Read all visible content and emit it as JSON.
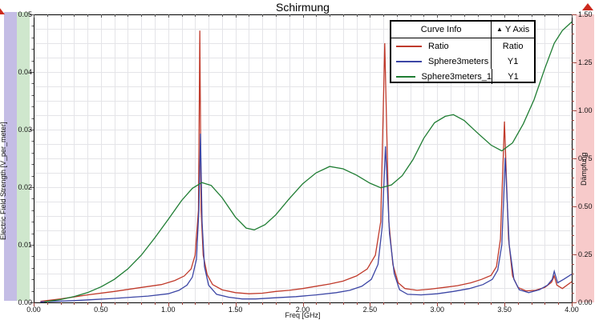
{
  "window": {
    "title": "Schirmung"
  },
  "chart_data": {
    "type": "line",
    "title": "Schirmung",
    "xlabel": "Freq [GHz]",
    "ylabel_left": "Electric Field Strength [V_per_meter]",
    "ylabel_right": "Dämpfung",
    "xlim": [
      0.0,
      4.0
    ],
    "ylim_left": [
      0.0,
      0.05
    ],
    "ylim_right": [
      0.0,
      1.5
    ],
    "grid": true,
    "x_tick_labels": [
      "0.00",
      "0.50",
      "1.00",
      "1.50",
      "2.00",
      "2.50",
      "3.00",
      "3.50",
      "4.00"
    ],
    "y_tick_labels_left": [
      "0.00",
      "0.01",
      "0.02",
      "0.03",
      "0.04",
      "0.05"
    ],
    "y_tick_labels_right": [
      "0.00",
      "0.25",
      "0.50",
      "0.75",
      "1.00",
      "1.25",
      "1.50"
    ],
    "legend": {
      "position": "top-right",
      "header_curve": "Curve Info",
      "header_axis": "Y Axis",
      "sort_icon": "▲",
      "rows": [
        {
          "name": "Ratio",
          "axis": "Ratio",
          "color": "#c03a2b"
        },
        {
          "name": "Sphere3meters",
          "axis": "Y1",
          "color": "#3c46a5"
        },
        {
          "name": "Sphere3meters_1",
          "axis": "Y1",
          "color": "#1f7d33"
        }
      ]
    },
    "series": [
      {
        "name": "Ratio",
        "color": "#c03a2b",
        "y_axis": "Ratio",
        "units_note": "values read against left axis scale",
        "points": [
          [
            0.05,
            0.0002
          ],
          [
            0.2,
            0.0006
          ],
          [
            0.4,
            0.0013
          ],
          [
            0.6,
            0.0019
          ],
          [
            0.8,
            0.0026
          ],
          [
            0.95,
            0.0031
          ],
          [
            1.05,
            0.0038
          ],
          [
            1.12,
            0.0046
          ],
          [
            1.17,
            0.0058
          ],
          [
            1.2,
            0.0082
          ],
          [
            1.225,
            0.016
          ],
          [
            1.235,
            0.0472
          ],
          [
            1.245,
            0.016
          ],
          [
            1.26,
            0.0082
          ],
          [
            1.29,
            0.0048
          ],
          [
            1.33,
            0.0031
          ],
          [
            1.4,
            0.0022
          ],
          [
            1.5,
            0.0017
          ],
          [
            1.6,
            0.0015
          ],
          [
            1.7,
            0.0016
          ],
          [
            1.8,
            0.0019
          ],
          [
            1.9,
            0.0021
          ],
          [
            2.0,
            0.0024
          ],
          [
            2.1,
            0.0028
          ],
          [
            2.2,
            0.0032
          ],
          [
            2.3,
            0.0037
          ],
          [
            2.4,
            0.0046
          ],
          [
            2.48,
            0.0058
          ],
          [
            2.54,
            0.0082
          ],
          [
            2.58,
            0.014
          ],
          [
            2.61,
            0.045
          ],
          [
            2.64,
            0.014
          ],
          [
            2.67,
            0.0066
          ],
          [
            2.71,
            0.0034
          ],
          [
            2.76,
            0.0024
          ],
          [
            2.85,
            0.0021
          ],
          [
            2.95,
            0.0023
          ],
          [
            3.05,
            0.0026
          ],
          [
            3.15,
            0.0029
          ],
          [
            3.25,
            0.0034
          ],
          [
            3.33,
            0.004
          ],
          [
            3.4,
            0.0047
          ],
          [
            3.44,
            0.0062
          ],
          [
            3.47,
            0.011
          ],
          [
            3.5,
            0.0314
          ],
          [
            3.53,
            0.011
          ],
          [
            3.56,
            0.0046
          ],
          [
            3.6,
            0.0026
          ],
          [
            3.66,
            0.002
          ],
          [
            3.73,
            0.0021
          ],
          [
            3.8,
            0.0026
          ],
          [
            3.85,
            0.0035
          ],
          [
            3.87,
            0.0046
          ],
          [
            3.89,
            0.003
          ],
          [
            3.93,
            0.0024
          ],
          [
            4.0,
            0.0036
          ]
        ]
      },
      {
        "name": "Sphere3meters",
        "color": "#3c46a5",
        "y_axis": "Y1",
        "points": [
          [
            0.05,
            0.0001
          ],
          [
            0.3,
            0.0003
          ],
          [
            0.6,
            0.0007
          ],
          [
            0.85,
            0.0011
          ],
          [
            1.0,
            0.0015
          ],
          [
            1.08,
            0.0021
          ],
          [
            1.14,
            0.003
          ],
          [
            1.18,
            0.0044
          ],
          [
            1.21,
            0.0075
          ],
          [
            1.228,
            0.016
          ],
          [
            1.24,
            0.0293
          ],
          [
            1.252,
            0.014
          ],
          [
            1.27,
            0.0062
          ],
          [
            1.3,
            0.003
          ],
          [
            1.36,
            0.0014
          ],
          [
            1.45,
            0.0009
          ],
          [
            1.55,
            0.0006
          ],
          [
            1.65,
            0.0006
          ],
          [
            1.8,
            0.0008
          ],
          [
            1.95,
            0.001
          ],
          [
            2.1,
            0.0013
          ],
          [
            2.25,
            0.0017
          ],
          [
            2.35,
            0.0021
          ],
          [
            2.44,
            0.0028
          ],
          [
            2.51,
            0.004
          ],
          [
            2.56,
            0.0066
          ],
          [
            2.59,
            0.013
          ],
          [
            2.615,
            0.0271
          ],
          [
            2.645,
            0.012
          ],
          [
            2.68,
            0.005
          ],
          [
            2.72,
            0.0022
          ],
          [
            2.78,
            0.0014
          ],
          [
            2.88,
            0.0013
          ],
          [
            3.0,
            0.0015
          ],
          [
            3.12,
            0.0019
          ],
          [
            3.24,
            0.0024
          ],
          [
            3.34,
            0.0031
          ],
          [
            3.41,
            0.004
          ],
          [
            3.45,
            0.0056
          ],
          [
            3.48,
            0.01
          ],
          [
            3.505,
            0.0251
          ],
          [
            3.535,
            0.01
          ],
          [
            3.57,
            0.004
          ],
          [
            3.61,
            0.0022
          ],
          [
            3.68,
            0.0017
          ],
          [
            3.76,
            0.0022
          ],
          [
            3.82,
            0.003
          ],
          [
            3.855,
            0.004
          ],
          [
            3.87,
            0.0054
          ],
          [
            3.895,
            0.0034
          ],
          [
            3.94,
            0.004
          ],
          [
            4.0,
            0.0049
          ]
        ]
      },
      {
        "name": "Sphere3meters_1",
        "color": "#1f7d33",
        "y_axis": "Y1",
        "points": [
          [
            0.08,
            0.0001
          ],
          [
            0.2,
            0.0005
          ],
          [
            0.3,
            0.001
          ],
          [
            0.4,
            0.0017
          ],
          [
            0.5,
            0.0027
          ],
          [
            0.6,
            0.004
          ],
          [
            0.7,
            0.0058
          ],
          [
            0.8,
            0.0082
          ],
          [
            0.9,
            0.0112
          ],
          [
            1.0,
            0.0144
          ],
          [
            1.1,
            0.0177
          ],
          [
            1.18,
            0.0198
          ],
          [
            1.25,
            0.0208
          ],
          [
            1.32,
            0.0203
          ],
          [
            1.4,
            0.0182
          ],
          [
            1.5,
            0.0148
          ],
          [
            1.58,
            0.0129
          ],
          [
            1.64,
            0.0126
          ],
          [
            1.72,
            0.0135
          ],
          [
            1.8,
            0.0152
          ],
          [
            1.9,
            0.018
          ],
          [
            2.0,
            0.0206
          ],
          [
            2.1,
            0.0225
          ],
          [
            2.2,
            0.0236
          ],
          [
            2.3,
            0.0232
          ],
          [
            2.4,
            0.0221
          ],
          [
            2.5,
            0.0207
          ],
          [
            2.58,
            0.0199
          ],
          [
            2.66,
            0.0204
          ],
          [
            2.74,
            0.022
          ],
          [
            2.82,
            0.0248
          ],
          [
            2.9,
            0.0285
          ],
          [
            2.98,
            0.0312
          ],
          [
            3.06,
            0.0323
          ],
          [
            3.12,
            0.0326
          ],
          [
            3.2,
            0.0316
          ],
          [
            3.3,
            0.0294
          ],
          [
            3.4,
            0.0273
          ],
          [
            3.48,
            0.0263
          ],
          [
            3.56,
            0.0277
          ],
          [
            3.64,
            0.031
          ],
          [
            3.72,
            0.0352
          ],
          [
            3.8,
            0.0406
          ],
          [
            3.87,
            0.045
          ],
          [
            3.93,
            0.0472
          ],
          [
            4.0,
            0.0487
          ]
        ]
      }
    ]
  },
  "colors": {
    "band_left_field_strength": "#c4bde5",
    "band_left_secondary": "#cfe7cd",
    "band_right_daempfung": "#f7caca",
    "grid": "#e4e4e8",
    "axis_border": "#000000",
    "tick_bottom_right": "#9c4038",
    "tick_left_top": "#555555",
    "axis_indicator": "#cc2a1e"
  }
}
